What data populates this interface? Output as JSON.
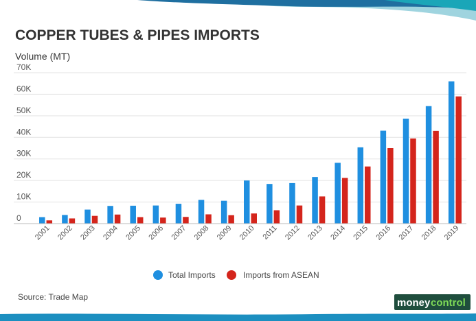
{
  "brand": {
    "logo_text_a": "money",
    "logo_text_b": "control",
    "colors": {
      "header_dark": "#1f6fa0",
      "header_light": "#9fd4df",
      "footer": "#1c8fc0",
      "logo_bg": "#1f4e3d",
      "logo_accent": "#7ed957"
    }
  },
  "source": "Source: Trade Map",
  "chart_data": {
    "type": "bar",
    "title": "COPPER TUBES & PIPES IMPORTS",
    "ylabel": "Volume (MT)",
    "xlabel": "",
    "ylim": [
      0,
      70000
    ],
    "yticks": [
      0,
      10000,
      20000,
      30000,
      40000,
      50000,
      60000,
      70000
    ],
    "ytick_labels": [
      "0",
      "10K",
      "20K",
      "30K",
      "40K",
      "50K",
      "60K",
      "70K"
    ],
    "grid": true,
    "legend_position": "bottom-center",
    "categories": [
      "2001",
      "2002",
      "2003",
      "2004",
      "2005",
      "2006",
      "2007",
      "2008",
      "2009",
      "2010",
      "2011",
      "2012",
      "2013",
      "2014",
      "2015",
      "2016",
      "2017",
      "2018",
      "2019"
    ],
    "series": [
      {
        "name": "Total Imports",
        "color": "#1f8fe0",
        "values": [
          3000,
          4000,
          6500,
          8200,
          8300,
          8400,
          9200,
          11000,
          10600,
          20000,
          18400,
          18800,
          21600,
          28200,
          35400,
          43100,
          48700,
          54500,
          66000
        ]
      },
      {
        "name": "Imports from ASEAN",
        "color": "#d4251c",
        "values": [
          1500,
          2400,
          3600,
          4200,
          3000,
          2800,
          3100,
          4300,
          3900,
          4700,
          6200,
          8400,
          12600,
          21200,
          26500,
          35000,
          39500,
          43000,
          59000
        ]
      }
    ]
  }
}
